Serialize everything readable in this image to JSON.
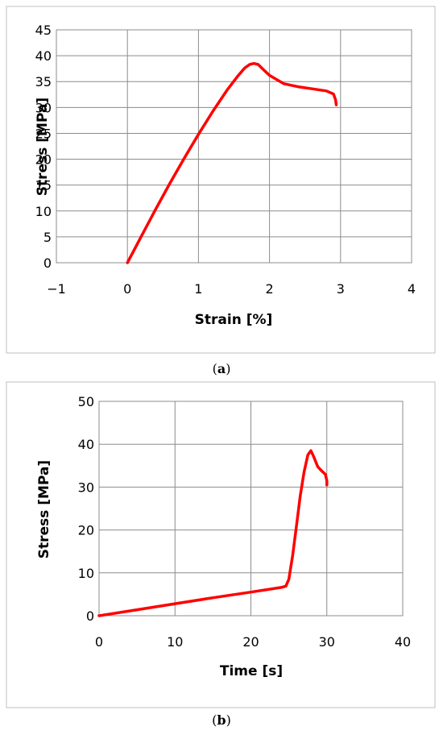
{
  "chart_data": [
    {
      "type": "line",
      "panel_label": "a",
      "xlabel": "Strain [%]",
      "ylabel": "Stress [MPa]",
      "xlim": [
        -1,
        4
      ],
      "ylim": [
        0,
        45
      ],
      "x_ticks": [
        -1,
        0,
        1,
        2,
        3,
        4
      ],
      "y_ticks": [
        0,
        5,
        10,
        15,
        20,
        25,
        30,
        35,
        40,
        45
      ],
      "x_tick_labels": [
        "−1",
        "0",
        "1",
        "2",
        "3",
        "4"
      ],
      "grid": true,
      "series": [
        {
          "color": "#ff0000",
          "x": [
            0,
            0.2,
            0.4,
            0.6,
            0.8,
            1.0,
            1.2,
            1.4,
            1.55,
            1.65,
            1.72,
            1.78,
            1.84,
            1.9,
            2.0,
            2.2,
            2.4,
            2.6,
            2.8,
            2.9,
            2.93,
            2.94
          ],
          "y": [
            0,
            5.2,
            10.4,
            15.4,
            20.2,
            24.8,
            29.2,
            33.3,
            36.0,
            37.6,
            38.3,
            38.5,
            38.3,
            37.5,
            36.2,
            34.6,
            34.0,
            33.6,
            33.2,
            32.6,
            31.5,
            30.5
          ]
        }
      ]
    },
    {
      "type": "line",
      "panel_label": "b",
      "xlabel": "Time [s]",
      "ylabel": "Stress [MPa]",
      "xlim": [
        0,
        40
      ],
      "ylim": [
        0,
        50
      ],
      "x_ticks": [
        0,
        10,
        20,
        30,
        40
      ],
      "y_ticks": [
        0,
        10,
        20,
        30,
        40,
        50
      ],
      "x_tick_labels": [
        "0",
        "10",
        "20",
        "30",
        "40"
      ],
      "grid": true,
      "series": [
        {
          "color": "#ff0000",
          "x": [
            0,
            5,
            10,
            15,
            20,
            24,
            24.6,
            25.0,
            25.5,
            26.0,
            26.5,
            27.0,
            27.5,
            27.9,
            28.3,
            28.8,
            29.3,
            29.8,
            30.0,
            30.0
          ],
          "y": [
            0,
            1.4,
            2.8,
            4.2,
            5.5,
            6.6,
            6.9,
            8.5,
            14.0,
            21.0,
            28.0,
            33.5,
            37.5,
            38.5,
            37.0,
            34.8,
            33.8,
            33.0,
            31.5,
            30.5
          ]
        }
      ]
    }
  ]
}
